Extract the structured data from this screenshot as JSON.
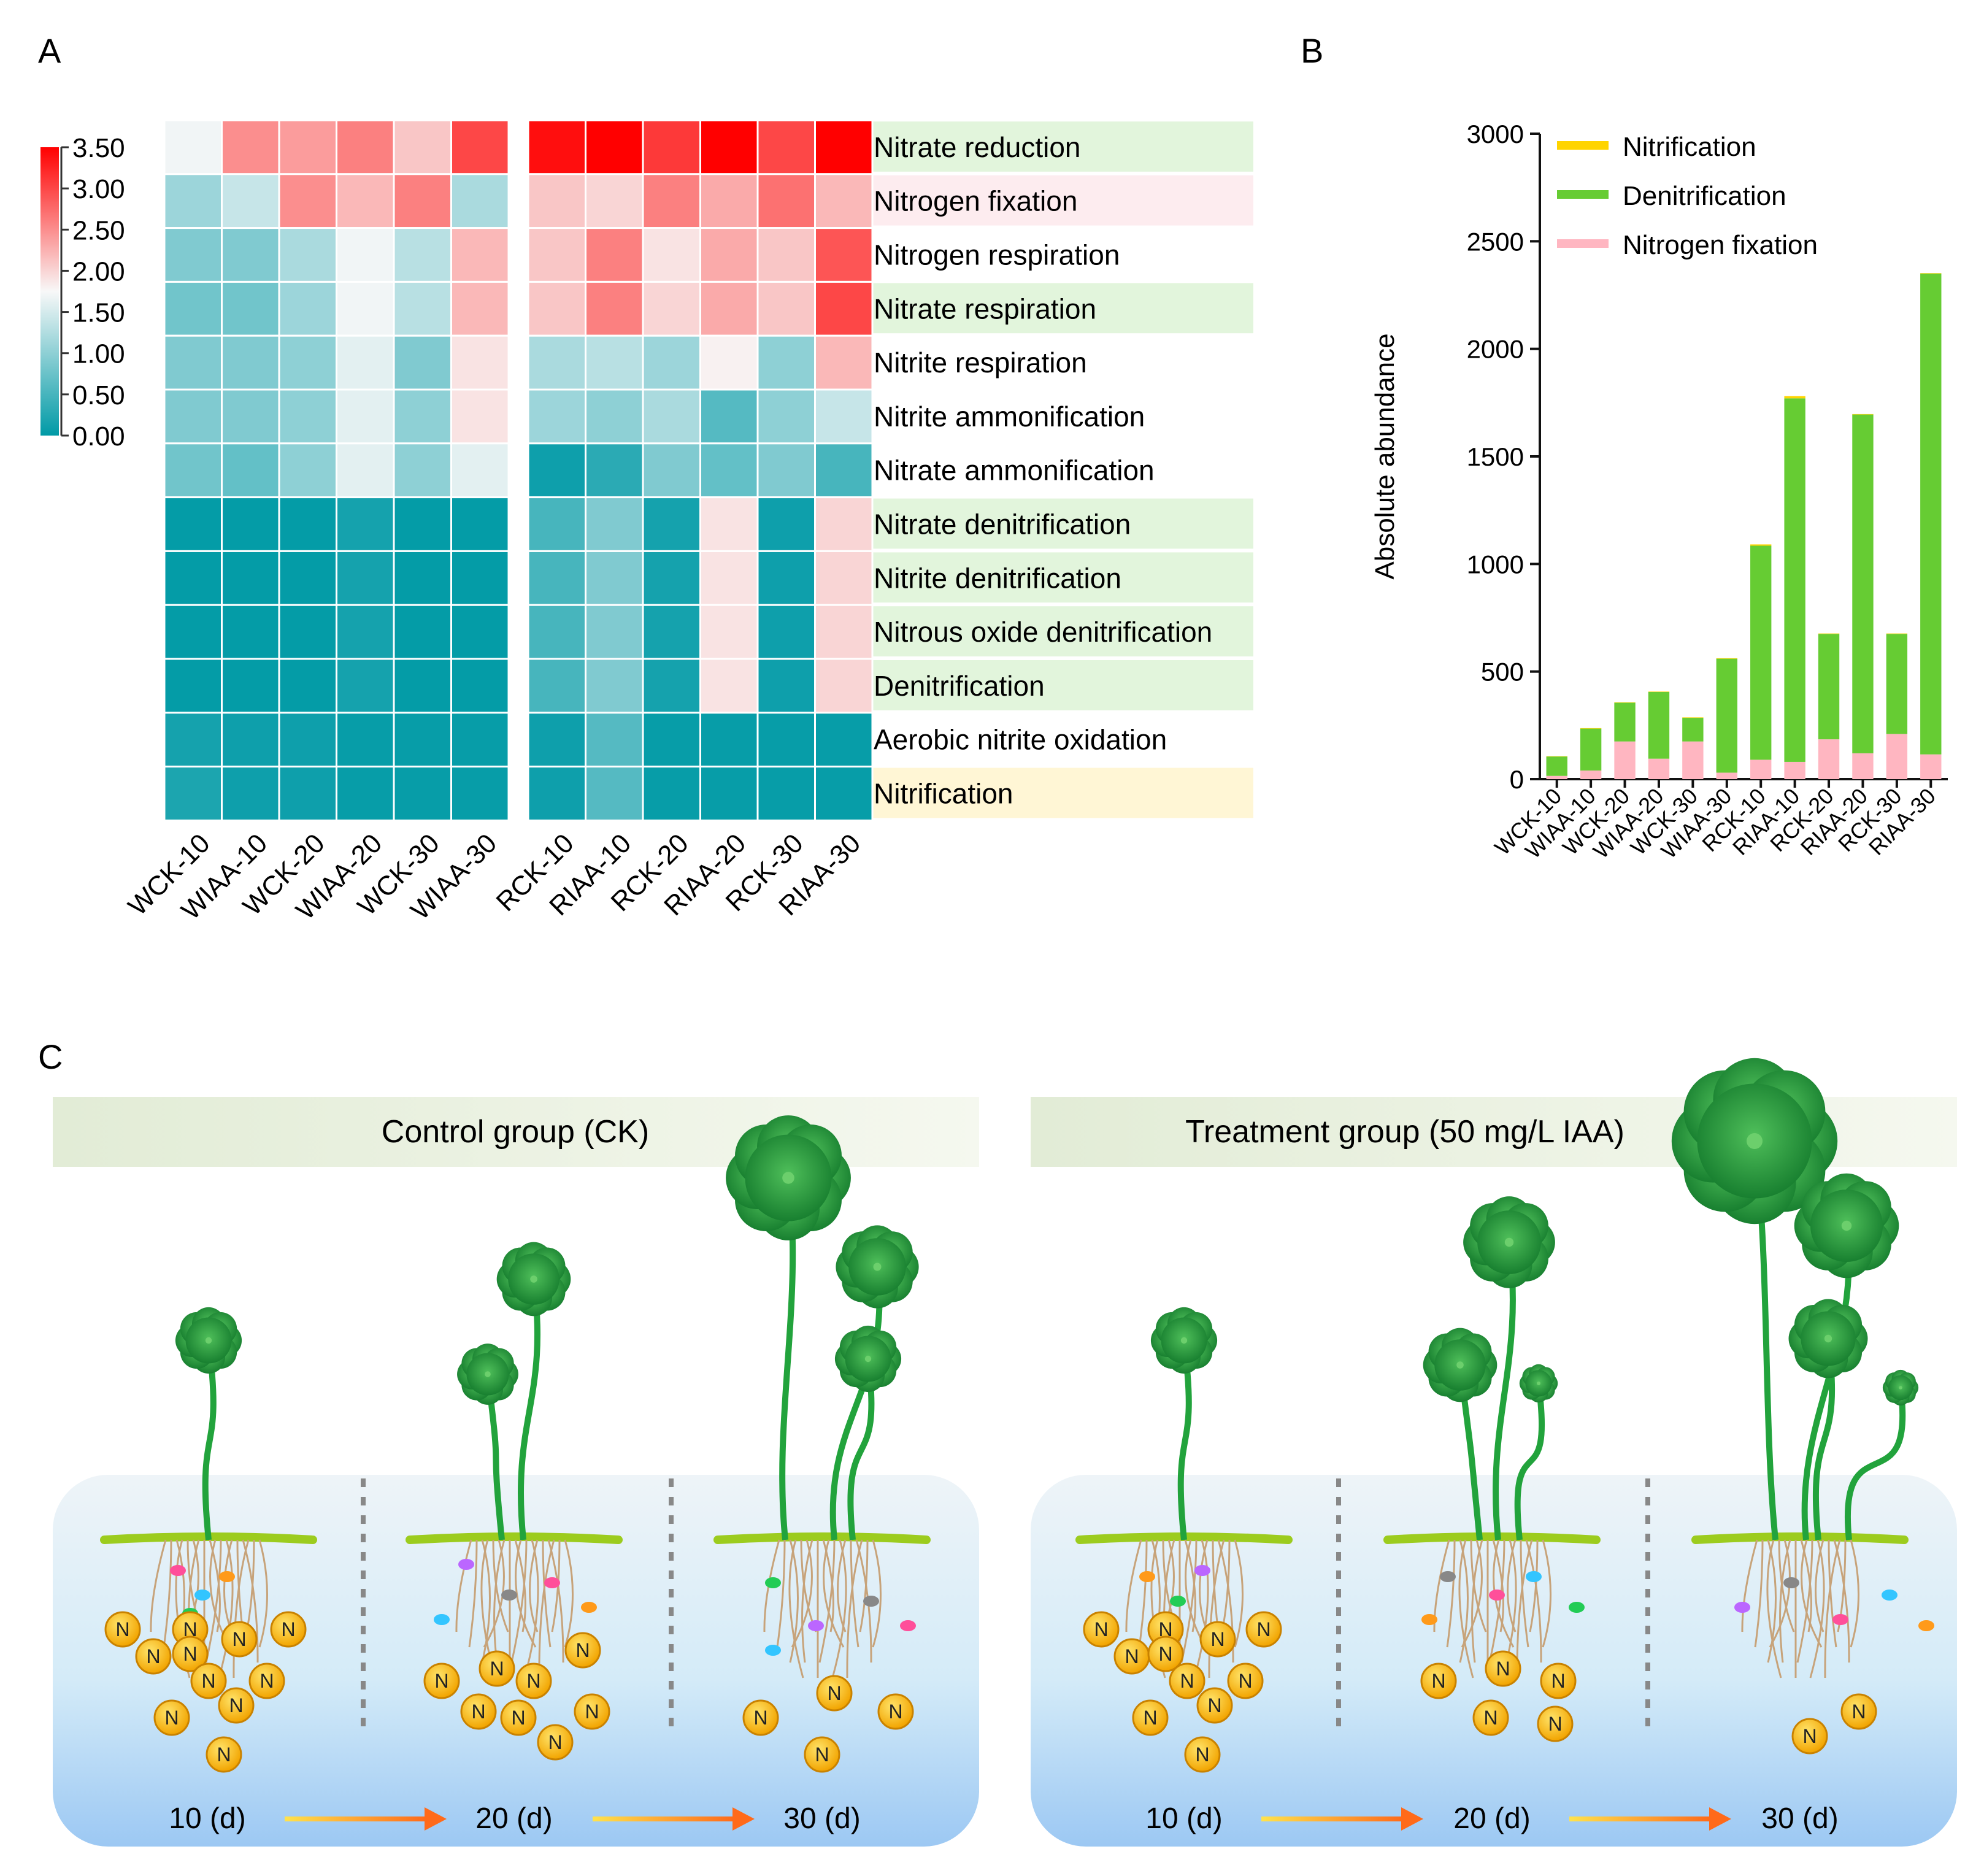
{
  "panels": {
    "a": "A",
    "b": "B",
    "c": "C"
  },
  "legend_ticks": [
    "3.50",
    "3.00",
    "2.50",
    "2.00",
    "1.50",
    "1.00",
    "0.50",
    "0.00"
  ],
  "colors": {
    "high": "#ff0000",
    "mid": "#f8f8f8",
    "low": "#009aa6",
    "nitrification": "#ffd400",
    "denitrification": "#66cc33",
    "nitrogen_fixation": "#ffb6c1",
    "row_green": "#e2f5dc",
    "row_pink": "#fdecef",
    "row_yellow": "#fff6d5"
  },
  "chart_data": [
    {
      "type": "heatmap",
      "title": "",
      "columns": [
        "WCK-10",
        "WIAA-10",
        "WCK-20",
        "WIAA-20",
        "WCK-30",
        "WIAA-30",
        "RCK-10",
        "RIAA-10",
        "RCK-20",
        "RIAA-20",
        "RCK-30",
        "RIAA-30"
      ],
      "rows": [
        "Nitrate reduction",
        "Nitrogen fixation",
        "Nitrogen respiration",
        "Nitrate respiration",
        "Nitrite respiration",
        "Nitrite ammonification",
        "Nitrate ammonification",
        "Nitrate denitrification",
        "Nitrite denitrification",
        "Nitrous oxide denitrification",
        "Denitrification",
        "Aerobic nitrite oxidation",
        "Nitrification"
      ],
      "row_highlight": [
        "green",
        "pink",
        "none",
        "green",
        "none",
        "none",
        "none",
        "green",
        "green",
        "green",
        "green",
        "none",
        "yellow"
      ],
      "scale": [
        0,
        3.5
      ],
      "values": [
        [
          1.7,
          2.5,
          2.4,
          2.6,
          2.1,
          3.0,
          3.4,
          3.5,
          3.1,
          3.5,
          3.0,
          3.5
        ],
        [
          1.1,
          1.4,
          2.5,
          2.2,
          2.6,
          1.2,
          2.1,
          2.0,
          2.6,
          2.3,
          2.7,
          2.2
        ],
        [
          0.9,
          0.9,
          1.2,
          1.7,
          1.3,
          2.2,
          2.1,
          2.6,
          1.9,
          2.3,
          2.1,
          2.9
        ],
        [
          0.8,
          0.8,
          1.1,
          1.7,
          1.3,
          2.2,
          2.1,
          2.6,
          2.0,
          2.3,
          2.1,
          3.0
        ],
        [
          0.9,
          0.9,
          1.0,
          1.6,
          0.9,
          1.9,
          1.2,
          1.3,
          1.1,
          1.8,
          1.0,
          2.2
        ],
        [
          0.9,
          0.9,
          1.0,
          1.6,
          1.0,
          1.9,
          1.1,
          1.0,
          1.2,
          0.6,
          1.0,
          1.4
        ],
        [
          0.8,
          0.7,
          1.0,
          1.6,
          1.0,
          1.6,
          0.1,
          0.3,
          0.9,
          0.7,
          0.9,
          0.5
        ],
        [
          0.03,
          0.03,
          0.03,
          0.15,
          0.03,
          0.03,
          0.5,
          0.9,
          0.15,
          1.9,
          0.1,
          2.0
        ],
        [
          0.03,
          0.03,
          0.03,
          0.15,
          0.03,
          0.03,
          0.5,
          0.9,
          0.15,
          1.9,
          0.1,
          2.0
        ],
        [
          0.03,
          0.03,
          0.03,
          0.15,
          0.03,
          0.03,
          0.5,
          0.9,
          0.15,
          1.9,
          0.1,
          2.0
        ],
        [
          0.03,
          0.03,
          0.03,
          0.15,
          0.03,
          0.03,
          0.5,
          0.9,
          0.15,
          1.9,
          0.1,
          2.0
        ],
        [
          0.15,
          0.1,
          0.1,
          0.05,
          0.05,
          0.05,
          0.1,
          0.6,
          0.05,
          0.05,
          0.05,
          0.05
        ],
        [
          0.2,
          0.1,
          0.1,
          0.05,
          0.05,
          0.05,
          0.1,
          0.6,
          0.05,
          0.05,
          0.05,
          0.05
        ]
      ]
    },
    {
      "type": "bar",
      "stacked": true,
      "title": "",
      "xlabel": "",
      "ylabel": "Absolute abundance",
      "ylim": [
        0,
        3000
      ],
      "yticks": [
        0,
        500,
        1000,
        1500,
        2000,
        2500,
        3000
      ],
      "categories": [
        "WCK-10",
        "WIAA-10",
        "WCK-20",
        "WIAA-20",
        "WCK-30",
        "WIAA-30",
        "RCK-10",
        "RIAA-10",
        "RCK-20",
        "RIAA-20",
        "RCK-30",
        "RIAA-30"
      ],
      "series": [
        {
          "name": "Nitrogen fixation",
          "values": [
            15,
            40,
            175,
            95,
            175,
            30,
            90,
            80,
            185,
            120,
            210,
            115
          ]
        },
        {
          "name": "Denitrification",
          "values": [
            90,
            195,
            180,
            310,
            110,
            530,
            995,
            1690,
            490,
            1575,
            465,
            2235
          ]
        },
        {
          "name": "Nitrification",
          "values": [
            2,
            2,
            2,
            2,
            2,
            2,
            6,
            10,
            2,
            2,
            2,
            2
          ]
        }
      ],
      "legend": [
        "Nitrification",
        "Denitrification",
        "Nitrogen fixation"
      ],
      "legend_position": "top-left"
    }
  ],
  "diagram": {
    "control_title": "Control group (CK)",
    "treatment_title": "Treatment group (50 mg/L IAA)",
    "days": [
      "10 (d)",
      "20 (d)",
      "30 (d)"
    ],
    "nutrient_label": "N"
  }
}
